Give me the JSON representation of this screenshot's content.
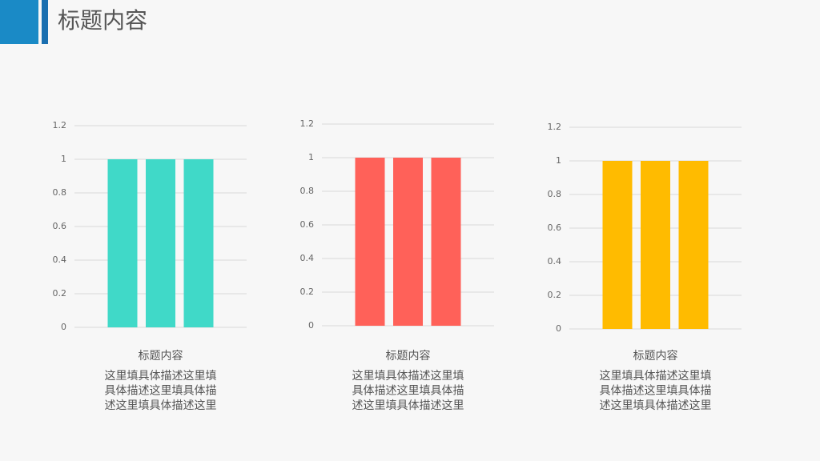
{
  "title": "标题内容",
  "chart_data": [
    {
      "type": "bar",
      "categories": [
        null,
        null,
        null
      ],
      "values": [
        1,
        1,
        1
      ],
      "color": "#40d9c8",
      "ylim": [
        0,
        1.2
      ],
      "yticks": [
        0,
        0.2,
        0.4,
        0.6,
        0.8,
        1,
        1.2
      ],
      "grid": true,
      "caption": "标题内容",
      "description": [
        "这里填具体描述这里填",
        "具体描述这里填具体描",
        "述这里填具体描述这里"
      ]
    },
    {
      "type": "bar",
      "categories": [
        null,
        null,
        null
      ],
      "values": [
        1,
        1,
        1
      ],
      "color": "#ff6159",
      "ylim": [
        0,
        1.2
      ],
      "yticks": [
        0,
        0.2,
        0.4,
        0.6,
        0.8,
        1,
        1.2
      ],
      "grid": true,
      "caption": "标题内容",
      "description": [
        "这里填具体描述这里填",
        "具体描述这里填具体描",
        "述这里填具体描述这里"
      ]
    },
    {
      "type": "bar",
      "categories": [
        null,
        null,
        null
      ],
      "values": [
        1,
        1,
        1
      ],
      "color": "#ffbb00",
      "ylim": [
        0,
        1.2
      ],
      "yticks": [
        0,
        0.2,
        0.4,
        0.6,
        0.8,
        1,
        1.2
      ],
      "grid": true,
      "caption": "标题内容",
      "description": [
        "这里填具体描述这里填",
        "具体描述这里填具体描",
        "述这里填具体描述这里"
      ]
    }
  ]
}
